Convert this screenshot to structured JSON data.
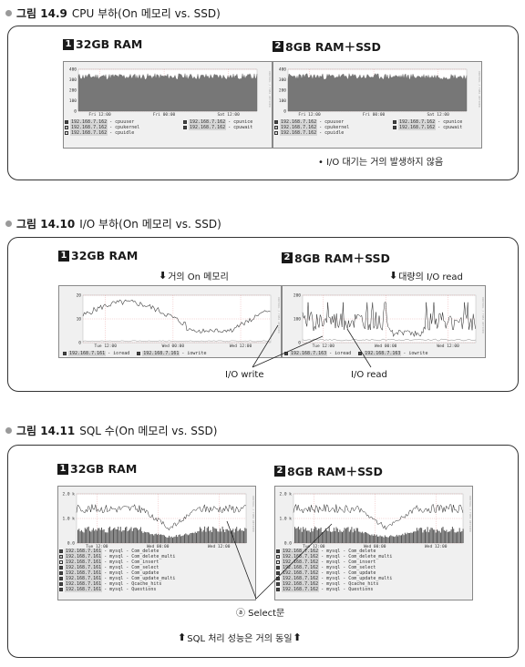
{
  "fig1": {
    "number": "그림 14.9",
    "title": "CPU 부하(On 메모리 vs. SSD)",
    "panel1": {
      "num": "1",
      "label": "32GB RAM"
    },
    "panel2": {
      "num": "2",
      "label": "8GB RAM＋SSD"
    },
    "y_ticks": [
      "400",
      "300",
      "200",
      "100",
      "0"
    ],
    "x_ticks1": [
      "Fri 12:00",
      "Fri 00:00",
      "Sat 12:00"
    ],
    "x_ticks2": [
      "Fri 12:00",
      "Fri 00:00",
      "Sat 12:00"
    ],
    "legend_left": [
      {
        "ip": "192.168.7.162",
        "metric": "- cpuuser"
      },
      {
        "ip": "192.168.7.162",
        "metric": "- cpukernel"
      },
      {
        "ip": "192.168.7.162",
        "metric": "- cpuidle"
      }
    ],
    "legend_right": [
      {
        "ip": "192.168.7.162",
        "metric": "- cpunice"
      },
      {
        "ip": "192.168.7.162",
        "metric": "- cpuwait"
      }
    ],
    "side_label": "RRDTOOL / TOBI OETIKER",
    "note": "• I/O 대기는 거의 발생하지 않음"
  },
  "fig2": {
    "number": "그림 14.10",
    "title": "I/O 부하(On 메모리 vs. SSD)",
    "panel1": {
      "num": "1",
      "label": "32GB RAM"
    },
    "panel2": {
      "num": "2",
      "label": "8GB RAM＋SSD"
    },
    "arrow1": "거의 On 메모리",
    "arrow2": "대량의 I/O read",
    "y_ticks1": [
      "20",
      "10",
      "0"
    ],
    "y_ticks2": [
      "200",
      "100",
      "0"
    ],
    "x_ticks": [
      "Tue 12:00",
      "Wed 00:00",
      "Wed 12:00"
    ],
    "legend1": [
      {
        "ip": "192.168.7.161",
        "metric": "- ioread"
      },
      {
        "ip": "192.168.7.161",
        "metric": "- iowrite"
      }
    ],
    "legend2": [
      {
        "ip": "192.168.7.163",
        "metric": "- ioread"
      },
      {
        "ip": "192.168.7.163",
        "metric": "- iowrite"
      }
    ],
    "side_label": "RRDTOOL / TOBI OETIKER",
    "write_label": "I/O write",
    "read_label": "I/O read"
  },
  "fig3": {
    "number": "그림 14.11",
    "title": "SQL 수(On 메모리 vs. SSD)",
    "panel1": {
      "num": "1",
      "label": "32GB RAM"
    },
    "panel2": {
      "num": "2",
      "label": "8GB RAM＋SSD"
    },
    "y_ticks": [
      "2.0 k",
      "1.0 k",
      "0.0"
    ],
    "x_ticks": [
      "Tue 12:00",
      "Wed 00:00",
      "Wed 12:00"
    ],
    "legend1": [
      {
        "ip": "192.168.7.161",
        "metric": "- mysql - Com_delete"
      },
      {
        "ip": "192.168.7.161",
        "metric": "- mysql - Com_delete_multi"
      },
      {
        "ip": "192.168.7.161",
        "metric": "- mysql - Com_insert"
      },
      {
        "ip": "192.168.7.161",
        "metric": "- mysql - Com_select"
      },
      {
        "ip": "192.168.7.161",
        "metric": "- mysql - Com_update"
      },
      {
        "ip": "192.168.7.161",
        "metric": "- mysql - Com_update_multi"
      },
      {
        "ip": "192.168.7.161",
        "metric": "- mysql - Qcache_hits"
      },
      {
        "ip": "192.168.7.161",
        "metric": "- mysql - Questions"
      }
    ],
    "legend2": [
      {
        "ip": "192.168.7.162",
        "metric": "- mysql - Com_delete"
      },
      {
        "ip": "192.168.7.162",
        "metric": "- mysql - Com_delete_multi"
      },
      {
        "ip": "192.168.7.162",
        "metric": "- mysql - Com_insert"
      },
      {
        "ip": "192.168.7.162",
        "metric": "- mysql - Com_select"
      },
      {
        "ip": "192.168.7.162",
        "metric": "- mysql - Com_update"
      },
      {
        "ip": "192.168.7.162",
        "metric": "- mysql - Com_update_multi"
      },
      {
        "ip": "192.168.7.162",
        "metric": "- mysql - Qcache_hits"
      },
      {
        "ip": "192.168.7.162",
        "metric": "- mysql - Questions"
      }
    ],
    "side_label": "RRDTOOL / TOBI OETIKER",
    "select_label": "ⓐ Select문",
    "bottom_note": "SQL 처리 성능은 거의 동일"
  },
  "colors": {
    "cpu_fill": "#777777",
    "io_line": "#444444",
    "sql_bar": "#555555",
    "legend_dark": "#444444",
    "legend_light": "#bbbbbb"
  }
}
